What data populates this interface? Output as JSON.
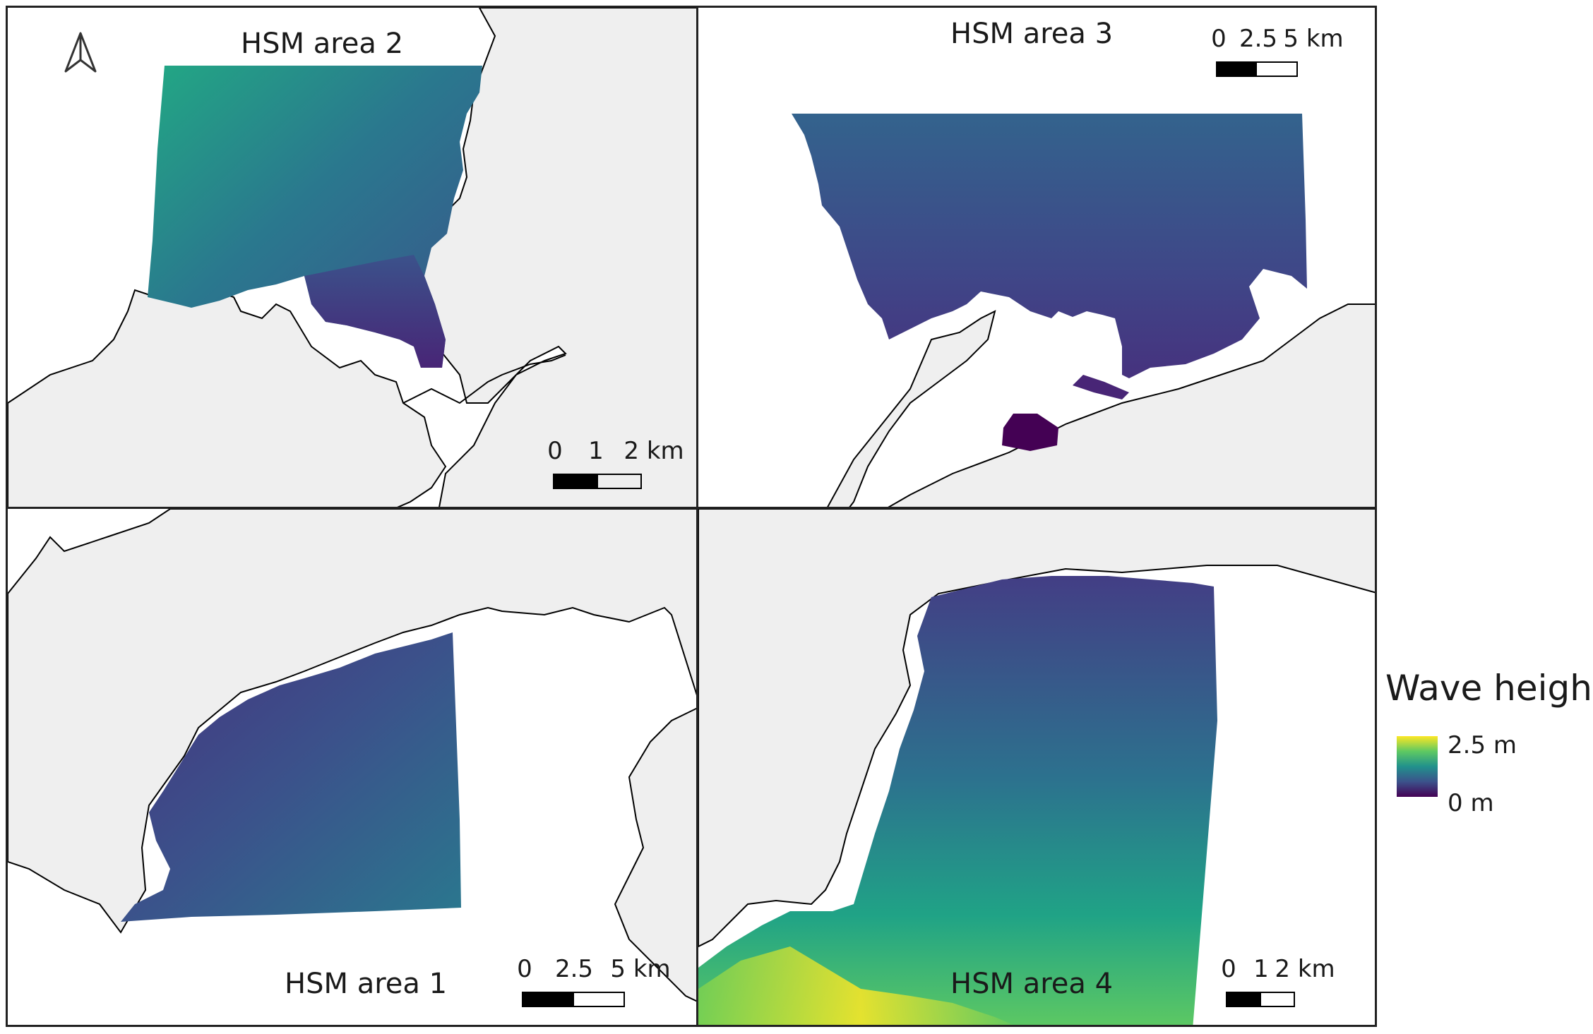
{
  "panels": {
    "area2": {
      "title": "HSM area 2",
      "scale": {
        "labels": [
          "0",
          "1",
          "2 km"
        ]
      }
    },
    "area3": {
      "title": "HSM area 3",
      "scale": {
        "labels": [
          "0",
          "2.5",
          "5 km"
        ]
      }
    },
    "area1": {
      "title": "HSM area 1",
      "scale": {
        "labels": [
          "0",
          "2.5",
          "5 km"
        ]
      }
    },
    "area4": {
      "title": "HSM area 4",
      "scale": {
        "labels": [
          "0",
          "1",
          "2 km"
        ]
      }
    }
  },
  "legend": {
    "title": "Wave height",
    "max_label": "2.5 m",
    "min_label": "0 m",
    "colors": [
      "#fde725",
      "#5ec962",
      "#21918c",
      "#3b528b",
      "#440154"
    ]
  },
  "north_arrow": {
    "icon": "north-arrow-icon"
  },
  "colors": {
    "land": "#efefef",
    "sea": "#ffffff",
    "coast": "#000000",
    "frame": "#222222"
  }
}
